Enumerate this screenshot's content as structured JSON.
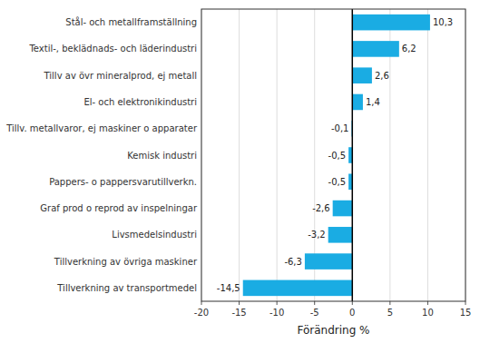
{
  "chart_data": {
    "type": "bar",
    "orientation": "horizontal",
    "categories": [
      "Tillverkning av transportmedel",
      "Tillverkning av övriga maskiner",
      "Livsmedelsindustri",
      "Graf prod o reprod av inspelningar",
      "Pappers- o pappersvarutillverkn.",
      "Kemisk industri",
      "Tillv. metallvaror, ej maskiner o apparater",
      "El- och elektronikindustri",
      "Tillv av övr mineralprod, ej metall",
      "Textil-, beklädnads- och läderindustri",
      "Stål- och metallframställning"
    ],
    "values": [
      -14.5,
      -6.3,
      -3.2,
      -2.6,
      -0.5,
      -0.5,
      -0.1,
      1.4,
      2.6,
      6.2,
      10.3
    ],
    "value_labels": [
      "-14,5",
      "-6,3",
      "-3,2",
      "-2,6",
      "-0,5",
      "-0,5",
      "-0,1",
      "1,4",
      "2,6",
      "6,2",
      "10,3"
    ],
    "data_labels": true,
    "color": "#1aace3",
    "xlabel": "Förändring %",
    "xlim": [
      -20,
      15
    ],
    "xticks": [
      -20,
      -15,
      -10,
      -5,
      0,
      5,
      10,
      15
    ],
    "grid": true
  }
}
